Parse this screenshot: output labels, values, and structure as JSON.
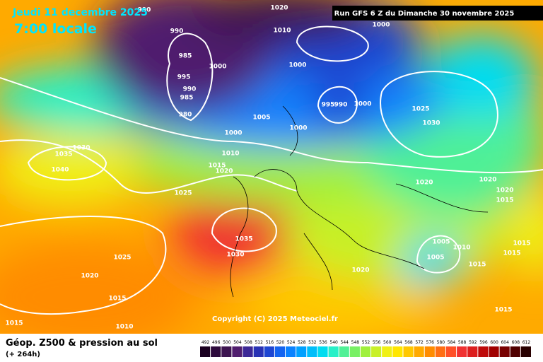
{
  "header": {
    "date": "Jeudi 11 decembre 2025",
    "time": "7:00 locale",
    "run": "Run GFS 6 Z du Dimanche 30 novembre 2025"
  },
  "copyright": "Copyright (C) 2025 Meteociel.fr",
  "footer": {
    "title": "Géop. Z500 & pression au sol",
    "subtitle": "(+ 264h)"
  },
  "isobar_labels": [
    "990",
    "1020",
    "1010",
    "1000",
    "990",
    "985",
    "1000",
    "1000",
    "995",
    "990",
    "985",
    "980",
    "995",
    "990",
    "1000",
    "1005",
    "1000",
    "1000",
    "1025",
    "1030",
    "1035",
    "1030",
    "1040",
    "1010",
    "1015",
    "1020",
    "1025",
    "1020",
    "1020",
    "1020",
    "1015",
    "1035",
    "1030",
    "1005",
    "1010",
    "1005",
    "1015",
    "1015",
    "1015",
    "1025",
    "1020",
    "1020",
    "1015",
    "1015",
    "1015",
    "1010"
  ],
  "colorbar": {
    "labels": [
      492,
      496,
      500,
      504,
      508,
      512,
      516,
      520,
      524,
      528,
      532,
      536,
      540,
      544,
      548,
      552,
      556,
      560,
      564,
      568,
      572,
      576,
      580,
      584,
      588,
      592,
      596,
      600,
      604,
      608,
      612
    ],
    "colors": [
      "#1a0020",
      "#2d0a3c",
      "#3c1450",
      "#501e6e",
      "#3c2896",
      "#2832b4",
      "#1e46d2",
      "#1464f0",
      "#0a82ff",
      "#00a0ff",
      "#00befa",
      "#00dcf0",
      "#28f0c8",
      "#50f096",
      "#78f064",
      "#a0f03c",
      "#c8f028",
      "#f0f014",
      "#ffe600",
      "#ffc800",
      "#ffaa00",
      "#ff8c00",
      "#ff6e14",
      "#ff5028",
      "#f03232",
      "#dc1e1e",
      "#be0a0a",
      "#a00000",
      "#780000",
      "#500000",
      "#280000"
    ]
  }
}
